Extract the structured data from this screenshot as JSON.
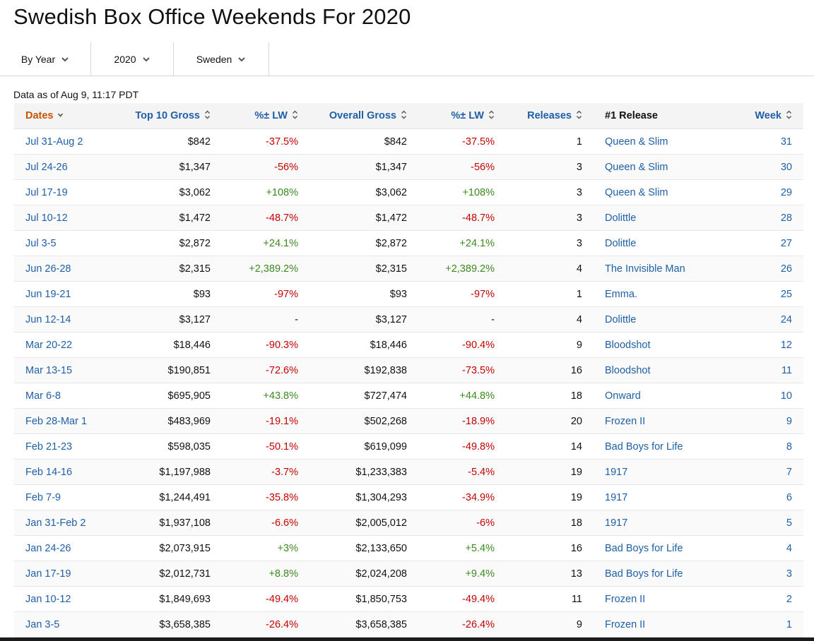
{
  "page": {
    "title": "Swedish Box Office Weekends For 2020",
    "data_as_of": "Data as of Aug 9, 11:17 PDT"
  },
  "filters": [
    {
      "label": "By Year",
      "icon": "chevron-down-icon"
    },
    {
      "label": "2020",
      "icon": "chevron-down-icon"
    },
    {
      "label": "Sweden",
      "icon": "chevron-down-icon"
    }
  ],
  "colors": {
    "link": "#1f5fa6",
    "active_sort": "#c45500",
    "negative": "#c40000",
    "positive": "#3b8a1f"
  },
  "table": {
    "headers": {
      "dates": "Dates",
      "top10": "Top 10 Gross",
      "lw1": "%± LW",
      "overall": "Overall Gross",
      "lw2": "%± LW",
      "releases": "Releases",
      "release1": "#1 Release",
      "week": "Week"
    },
    "rows": [
      {
        "dates": "Jul 31-Aug 2",
        "top10": "$842",
        "lw1": "-37.5%",
        "overall": "$842",
        "lw2": "-37.5%",
        "releases": "1",
        "release1": "Queen & Slim",
        "week": "31"
      },
      {
        "dates": "Jul 24-26",
        "top10": "$1,347",
        "lw1": "-56%",
        "overall": "$1,347",
        "lw2": "-56%",
        "releases": "3",
        "release1": "Queen & Slim",
        "week": "30"
      },
      {
        "dates": "Jul 17-19",
        "top10": "$3,062",
        "lw1": "+108%",
        "overall": "$3,062",
        "lw2": "+108%",
        "releases": "3",
        "release1": "Queen & Slim",
        "week": "29"
      },
      {
        "dates": "Jul 10-12",
        "top10": "$1,472",
        "lw1": "-48.7%",
        "overall": "$1,472",
        "lw2": "-48.7%",
        "releases": "3",
        "release1": "Dolittle",
        "week": "28"
      },
      {
        "dates": "Jul 3-5",
        "top10": "$2,872",
        "lw1": "+24.1%",
        "overall": "$2,872",
        "lw2": "+24.1%",
        "releases": "3",
        "release1": "Dolittle",
        "week": "27"
      },
      {
        "dates": "Jun 26-28",
        "top10": "$2,315",
        "lw1": "+2,389.2%",
        "overall": "$2,315",
        "lw2": "+2,389.2%",
        "releases": "4",
        "release1": "The Invisible Man",
        "week": "26"
      },
      {
        "dates": "Jun 19-21",
        "top10": "$93",
        "lw1": "-97%",
        "overall": "$93",
        "lw2": "-97%",
        "releases": "1",
        "release1": "Emma.",
        "week": "25"
      },
      {
        "dates": "Jun 12-14",
        "top10": "$3,127",
        "lw1": "-",
        "overall": "$3,127",
        "lw2": "-",
        "releases": "4",
        "release1": "Dolittle",
        "week": "24"
      },
      {
        "dates": "Mar 20-22",
        "top10": "$18,446",
        "lw1": "-90.3%",
        "overall": "$18,446",
        "lw2": "-90.4%",
        "releases": "9",
        "release1": "Bloodshot",
        "week": "12"
      },
      {
        "dates": "Mar 13-15",
        "top10": "$190,851",
        "lw1": "-72.6%",
        "overall": "$192,838",
        "lw2": "-73.5%",
        "releases": "16",
        "release1": "Bloodshot",
        "week": "11"
      },
      {
        "dates": "Mar 6-8",
        "top10": "$695,905",
        "lw1": "+43.8%",
        "overall": "$727,474",
        "lw2": "+44.8%",
        "releases": "18",
        "release1": "Onward",
        "week": "10"
      },
      {
        "dates": "Feb 28-Mar 1",
        "top10": "$483,969",
        "lw1": "-19.1%",
        "overall": "$502,268",
        "lw2": "-18.9%",
        "releases": "20",
        "release1": "Frozen II",
        "week": "9"
      },
      {
        "dates": "Feb 21-23",
        "top10": "$598,035",
        "lw1": "-50.1%",
        "overall": "$619,099",
        "lw2": "-49.8%",
        "releases": "14",
        "release1": "Bad Boys for Life",
        "week": "8"
      },
      {
        "dates": "Feb 14-16",
        "top10": "$1,197,988",
        "lw1": "-3.7%",
        "overall": "$1,233,383",
        "lw2": "-5.4%",
        "releases": "19",
        "release1": "1917",
        "week": "7"
      },
      {
        "dates": "Feb 7-9",
        "top10": "$1,244,491",
        "lw1": "-35.8%",
        "overall": "$1,304,293",
        "lw2": "-34.9%",
        "releases": "19",
        "release1": "1917",
        "week": "6"
      },
      {
        "dates": "Jan 31-Feb 2",
        "top10": "$1,937,108",
        "lw1": "-6.6%",
        "overall": "$2,005,012",
        "lw2": "-6%",
        "releases": "18",
        "release1": "1917",
        "week": "5"
      },
      {
        "dates": "Jan 24-26",
        "top10": "$2,073,915",
        "lw1": "+3%",
        "overall": "$2,133,650",
        "lw2": "+5.4%",
        "releases": "16",
        "release1": "Bad Boys for Life",
        "week": "4"
      },
      {
        "dates": "Jan 17-19",
        "top10": "$2,012,731",
        "lw1": "+8.8%",
        "overall": "$2,024,208",
        "lw2": "+9.4%",
        "releases": "13",
        "release1": "Bad Boys for Life",
        "week": "3"
      },
      {
        "dates": "Jan 10-12",
        "top10": "$1,849,693",
        "lw1": "-49.4%",
        "overall": "$1,850,753",
        "lw2": "-49.4%",
        "releases": "11",
        "release1": "Frozen II",
        "week": "2"
      },
      {
        "dates": "Jan 3-5",
        "top10": "$3,658,385",
        "lw1": "-26.4%",
        "overall": "$3,658,385",
        "lw2": "-26.4%",
        "releases": "9",
        "release1": "Frozen II",
        "week": "1"
      }
    ]
  }
}
